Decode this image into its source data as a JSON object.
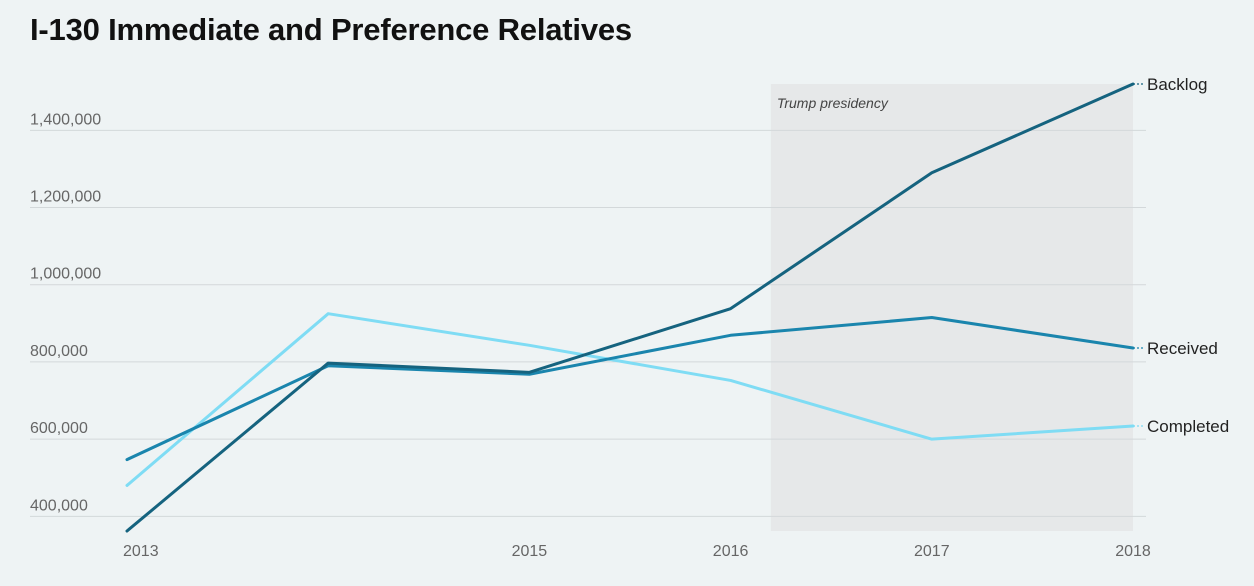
{
  "chart_data": {
    "type": "line",
    "title": "I-130 Immediate and Preference Relatives",
    "x": [
      2013.0,
      2014.0,
      2015.0,
      2016.0,
      2017.0,
      2018.0
    ],
    "x_tick_labels": [
      {
        "value": 2013.0,
        "label": "2013"
      },
      {
        "value": 2015.0,
        "label": "2015"
      },
      {
        "value": 2016.0,
        "label": "2016"
      },
      {
        "value": 2017.0,
        "label": "2017"
      },
      {
        "value": 2018.0,
        "label": "2018"
      }
    ],
    "xlim": [
      2013.0,
      2018.0
    ],
    "ylim": [
      362000,
      1520000
    ],
    "y_ticks": [
      400000,
      600000,
      800000,
      1000000,
      1200000,
      1400000
    ],
    "y_tick_labels": [
      "400,000",
      "600,000",
      "800,000",
      "1,000,000",
      "1,200,000",
      "1,400,000"
    ],
    "series": [
      {
        "name": "Backlog",
        "color": "#15637f",
        "values": [
          362000,
          797000,
          773000,
          938000,
          1290000,
          1520000
        ]
      },
      {
        "name": "Received",
        "color": "#1a85ad",
        "values": [
          547000,
          790000,
          768000,
          869000,
          915000,
          836000
        ]
      },
      {
        "name": "Completed",
        "color": "#7fdcf4",
        "values": [
          480000,
          925000,
          843000,
          752000,
          600000,
          634000
        ]
      }
    ],
    "shaded_region": {
      "label": "Trump presidency",
      "x_start": 2016.2,
      "x_end": 2018.0
    },
    "grid": true,
    "legend": "labels at right end of each line"
  }
}
